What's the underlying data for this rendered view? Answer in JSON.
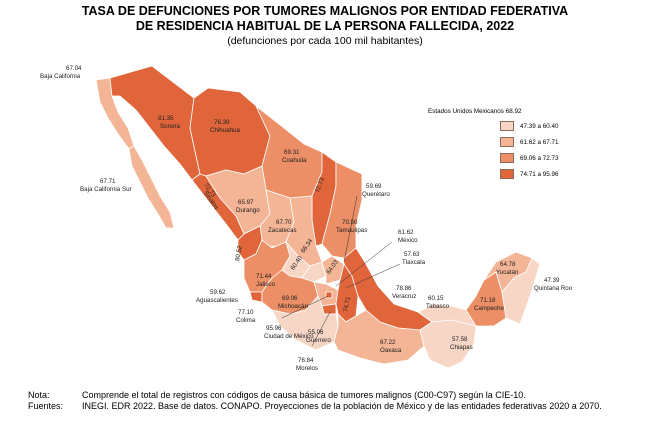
{
  "title_line1": "TASA DE DEFUNCIONES POR TUMORES MALIGNOS POR ENTIDAD FEDERATIVA",
  "title_line2": "DE RESIDENCIA HABITUAL DE LA PERSONA FALLECIDA, 2022",
  "subtitle": "(defunciones por cada 100 mil habitantes)",
  "legend": {
    "title": "Estados Unidos Mexicanos 68.92",
    "classes": [
      {
        "label": "47.39 a 60.40",
        "color": "#f8d6c6"
      },
      {
        "label": "61.62 a 67.71",
        "color": "#f3b595"
      },
      {
        "label": "69.06 a 72.73",
        "color": "#ec8f67"
      },
      {
        "label": "74.71 a 95.96",
        "color": "#e0653a"
      }
    ]
  },
  "states": [
    {
      "name": "Baja California",
      "value": "67.04"
    },
    {
      "name": "Baja California Sur",
      "value": "67.71"
    },
    {
      "name": "Sonora",
      "value": "81.35"
    },
    {
      "name": "Chihuahua",
      "value": "76.39"
    },
    {
      "name": "Coahuila",
      "value": "69.31"
    },
    {
      "name": "Nuevo León",
      "value": "72.73"
    },
    {
      "name": "Tamaulipas",
      "value": "70.50"
    },
    {
      "name": "Sinaloa",
      "value": "72.73"
    },
    {
      "name": "Durango",
      "value": "65.97"
    },
    {
      "name": "Zacatecas",
      "value": "67.70"
    },
    {
      "name": "San Luis Potosí",
      "value": "66.34"
    },
    {
      "name": "Nayarit",
      "value": "80.52"
    },
    {
      "name": "Jalisco",
      "value": "71.44"
    },
    {
      "name": "Aguascalientes",
      "value": "59.62"
    },
    {
      "name": "Guanajuato",
      "value": "60.40"
    },
    {
      "name": "Querétaro",
      "value": "59.69"
    },
    {
      "name": "Hidalgo",
      "value": "64.03"
    },
    {
      "name": "México",
      "value": "61.62"
    },
    {
      "name": "Tlaxcala",
      "value": "57.63"
    },
    {
      "name": "Veracruz",
      "value": "78.86"
    },
    {
      "name": "Colima",
      "value": "77.10"
    },
    {
      "name": "Michoacán",
      "value": "69.06"
    },
    {
      "name": "Ciudad de México",
      "value": "95.96"
    },
    {
      "name": "Morelos",
      "value": "76.84"
    },
    {
      "name": "Guerrero",
      "value": "55.06"
    },
    {
      "name": "Puebla",
      "value": "74.71"
    },
    {
      "name": "Oaxaca",
      "value": "67.22"
    },
    {
      "name": "Chiapas",
      "value": "57.58"
    },
    {
      "name": "Tabasco",
      "value": "60.15"
    },
    {
      "name": "Campeche",
      "value": "71.18"
    },
    {
      "name": "Yucatán",
      "value": "64.78"
    },
    {
      "name": "Quintana Roo",
      "value": "47.39"
    }
  ],
  "notes": {
    "nota_key": "Nota:",
    "nota_text": "Comprende el total de registros con códigos de causa básica de tumores malignos (C00-C97) según la CIE-10.",
    "fuentes_key": "Fuentes:",
    "fuentes_text": "INEGI. EDR 2022. Base de datos. CONAPO. Proyecciones de la población de México y de las entidades federativas 2020 a 2070."
  }
}
